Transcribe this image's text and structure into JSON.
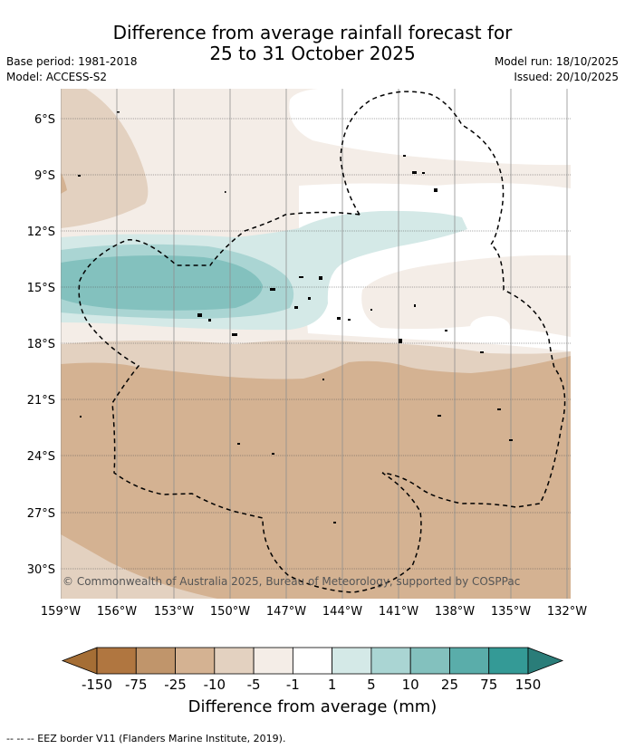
{
  "title": {
    "line1": "Difference from average rainfall forecast for",
    "line2": "25 to 31 October 2025"
  },
  "meta": {
    "base_period": "Base period: 1981-2018",
    "model": "Model: ACCESS-S2",
    "model_run": "Model run: 18/10/2025",
    "issued": "Issued: 20/10/2025"
  },
  "map": {
    "lat_labels": [
      "6°S",
      "9°S",
      "12°S",
      "15°S",
      "18°S",
      "21°S",
      "24°S",
      "27°S",
      "30°S"
    ],
    "lon_labels": [
      "159°W",
      "156°W",
      "153°W",
      "150°W",
      "147°W",
      "144°W",
      "141°W",
      "138°W",
      "135°W",
      "132°W"
    ],
    "copyright": "© Commonwealth of Australia 2025, Bureau of Meteorology, supported by COSPPac"
  },
  "colorbar": {
    "labels": [
      "-150",
      "-75",
      "-25",
      "-10",
      "-5",
      "-1",
      "1",
      "5",
      "10",
      "25",
      "75",
      "150"
    ],
    "colors": [
      "#a56e35",
      "#b07640",
      "#c0956b",
      "#d4b292",
      "#e3d1c0",
      "#f4ede7",
      "#ffffff",
      "#d4e9e7",
      "#aad5d3",
      "#83c1be",
      "#5aadaa",
      "#349a96",
      "#2a7d79"
    ],
    "title": "Difference from average (mm)"
  },
  "legend": {
    "eez": "--  --  -- EEZ border V11 (Flanders Marine Institute, 2019)."
  }
}
